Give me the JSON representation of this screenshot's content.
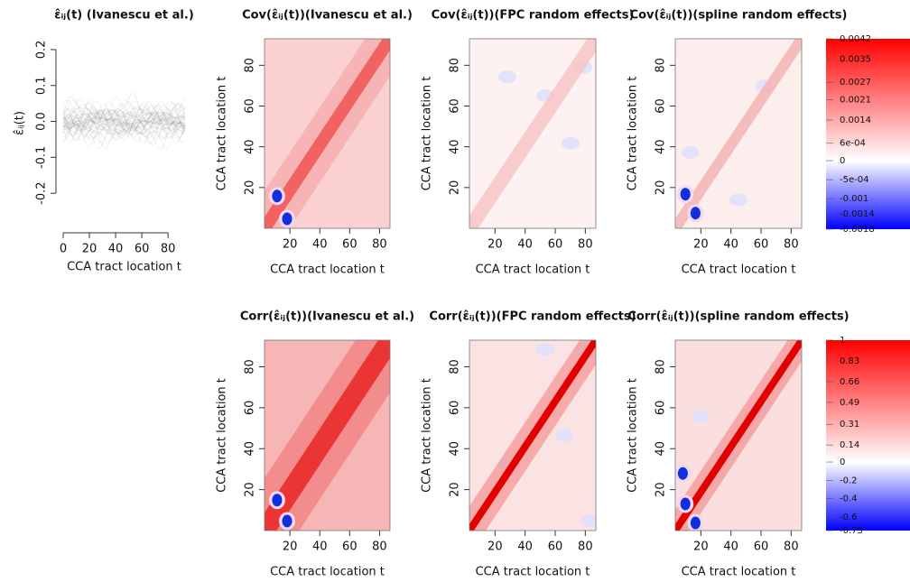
{
  "chart_data": [
    {
      "type": "line",
      "title": "ε̂ᵢⱼ(t) (Ivanescu et al.)",
      "xlabel": "CCA tract location t",
      "ylabel": "ε̂ᵢⱼ(t)",
      "color": "#000000",
      "xlim": [
        0,
        93
      ],
      "xticks": [
        0,
        20,
        40,
        60,
        80
      ],
      "ylim": [
        -0.29,
        0.23
      ],
      "yticks": [
        -0.2,
        -0.1,
        {
          "value": 0,
          "label": "0.0"
        },
        0.1,
        0.2
      ]
    },
    {
      "type": "heatmap",
      "title": "Cov(ε̂ᵢⱼ(t))(Ivanescu et al.)",
      "xlabel": "CCA tract location t",
      "ylabel": "CCA tract location t",
      "xlim": [
        3,
        87
      ],
      "xticks": [
        20,
        40,
        60,
        80
      ],
      "ylim": [
        0,
        93
      ],
      "yticks": [
        20,
        40,
        60,
        80
      ]
    },
    {
      "type": "heatmap",
      "title": "Cov(ε̂ᵢⱼ(t))(FPC random effects)",
      "xlabel": "CCA tract location t",
      "ylabel": "CCA tract location t",
      "xlim": [
        3,
        87
      ],
      "xticks": [
        20,
        40,
        60,
        80
      ],
      "ylim": [
        0,
        93
      ],
      "yticks": [
        20,
        40,
        60,
        80
      ]
    },
    {
      "type": "heatmap",
      "title": "Cov(ε̂ᵢⱼ(t))(spline random effects)",
      "xlabel": "CCA tract location t",
      "ylabel": "CCA tract location t",
      "xlim": [
        3,
        87
      ],
      "xticks": [
        20,
        40,
        60,
        80
      ],
      "ylim": [
        0,
        93
      ],
      "yticks": [
        20,
        40,
        60,
        80
      ]
    },
    {
      "type": "colorbar",
      "colors": [
        "#0000ff",
        "#ffffff",
        "#ff0000"
      ],
      "clim": [
        -0.0018,
        0.0042
      ],
      "ticks": [
        0.0042,
        0.0035,
        0.0027,
        0.0021,
        0.0014,
        {
          "value": 0.0006,
          "label": "6e-04"
        },
        0,
        {
          "value": -0.0005,
          "label": "-5e-04"
        },
        -0.001,
        -0.0014,
        -0.0018
      ]
    },
    {
      "type": "heatmap",
      "title": "Corr(ε̂ᵢⱼ(t))(Ivanescu et al.)",
      "xlabel": "CCA tract location t",
      "ylabel": "CCA tract location t",
      "xlim": [
        3,
        87
      ],
      "xticks": [
        20,
        40,
        60,
        80
      ],
      "ylim": [
        0,
        93
      ],
      "yticks": [
        20,
        40,
        60,
        80
      ]
    },
    {
      "type": "heatmap",
      "title": "Corr(ε̂ᵢⱼ(t))(FPC random effects)",
      "xlabel": "CCA tract location t",
      "ylabel": "CCA tract location t",
      "xlim": [
        3,
        87
      ],
      "xticks": [
        20,
        40,
        60,
        80
      ],
      "ylim": [
        0,
        93
      ],
      "yticks": [
        20,
        40,
        60,
        80
      ]
    },
    {
      "type": "heatmap",
      "title": "Corr(ε̂ᵢⱼ(t))(spline random effects)",
      "xlabel": "CCA tract location t",
      "ylabel": "CCA tract location t",
      "xlim": [
        3,
        87
      ],
      "xticks": [
        20,
        40,
        60,
        80
      ],
      "ylim": [
        0,
        93
      ],
      "yticks": [
        20,
        40,
        60,
        80
      ]
    },
    {
      "type": "colorbar",
      "colors": [
        "#0000ff",
        "#ffffff",
        "#ff0000"
      ],
      "clim": [
        -0.75,
        1
      ],
      "ticks": [
        1,
        0.83,
        0.66,
        0.49,
        0.31,
        0.14,
        0,
        -0.2,
        -0.4,
        -0.6,
        -0.75
      ]
    }
  ]
}
